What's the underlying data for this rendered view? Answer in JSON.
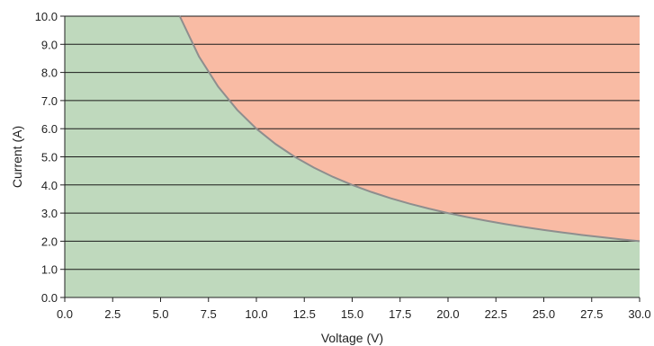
{
  "chart_data": {
    "type": "area",
    "title": "",
    "xlabel": "Voltage (V)",
    "ylabel": "Current (A)",
    "xlim": [
      0,
      30
    ],
    "ylim": [
      0,
      10
    ],
    "xticks": [
      0,
      2.5,
      5,
      7.5,
      10,
      12.5,
      15,
      17.5,
      20,
      22.5,
      25,
      27.5,
      30
    ],
    "yticks": [
      0,
      1,
      2,
      3,
      4,
      5,
      6,
      7,
      8,
      9,
      10
    ],
    "xtick_labels": [
      "0.0",
      "2.5",
      "5.0",
      "7.5",
      "10.0",
      "12.5",
      "15.0",
      "17.5",
      "20.0",
      "22.5",
      "25.0",
      "27.5",
      "30.0"
    ],
    "ytick_labels": [
      "0.0",
      "1.0",
      "2.0",
      "3.0",
      "4.0",
      "5.0",
      "6.0",
      "7.0",
      "8.0",
      "9.0",
      "10.0"
    ],
    "grid": "horizontal",
    "boundary": {
      "x": [
        6,
        7,
        8,
        9,
        10,
        11,
        12,
        13,
        14,
        15,
        16,
        17,
        18,
        19,
        20,
        21,
        22,
        23,
        24,
        25,
        26,
        27,
        28,
        29,
        30
      ],
      "y": [
        10,
        8.571,
        7.5,
        6.667,
        6,
        5.455,
        5,
        4.615,
        4.286,
        4,
        3.75,
        3.529,
        3.333,
        3.158,
        3,
        2.857,
        2.727,
        2.609,
        2.5,
        2.4,
        2.308,
        2.222,
        2.143,
        2.069,
        2
      ]
    },
    "colors": {
      "safe": "#bfd9bd",
      "unsafe": "#f9bba4",
      "boundary_line": "#8e8e8e",
      "grid": "#1a1a1a",
      "axis": "#222222"
    }
  }
}
